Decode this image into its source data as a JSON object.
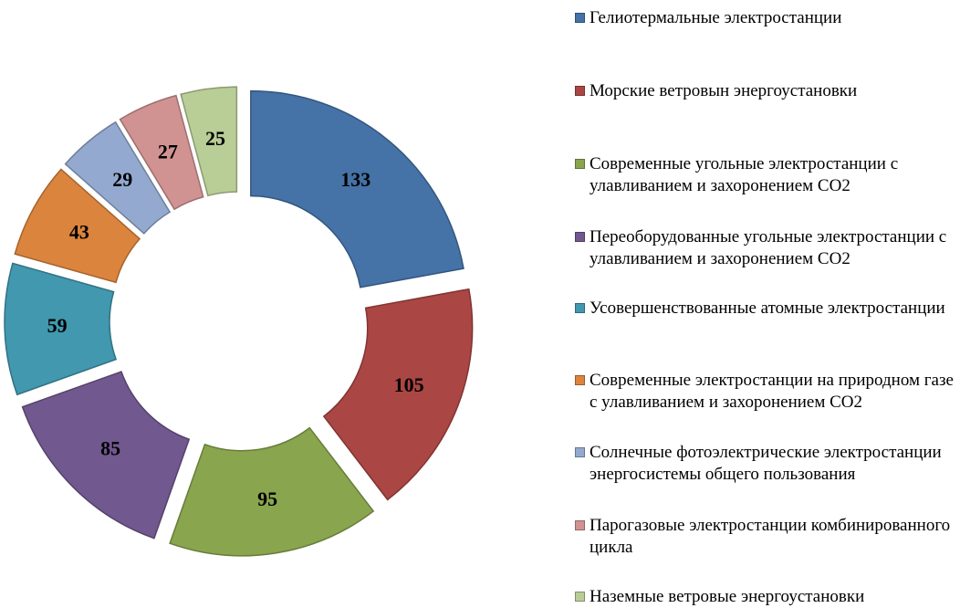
{
  "chart_data": {
    "type": "donut",
    "categories": [
      "Гелиотермальные электростанции",
      "Морские ветровын энергоустановки",
      "Современные угольные электростанции с улавливанием и захоронением СО2",
      "Переоборудованные угольные электростанции с улавливанием и захоронением СО2",
      "Усовершенствованные атомные электростанции",
      "Современные электростанции на природном газе с улавливанием и захоронением СО2",
      "Солнечные фотоэлектрические электростанции энергосистемы общего пользования",
      "Парогазовые электростанции комбинированного цикла",
      "Наземные ветровые энергоустановки"
    ],
    "values": [
      133,
      105,
      95,
      85,
      59,
      43,
      29,
      27,
      25
    ],
    "colors": [
      "#4572a7",
      "#aa4643",
      "#89a54e",
      "#71588f",
      "#4198af",
      "#db843d",
      "#93a9cf",
      "#d19392",
      "#b9cd96"
    ],
    "legend": "right"
  }
}
